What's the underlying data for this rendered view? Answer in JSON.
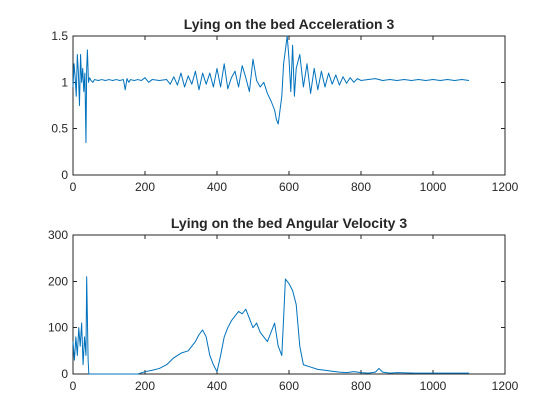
{
  "figure": {
    "background": "#ffffff",
    "axis_color": "#262626",
    "line_color": "#0072bd"
  },
  "chart_data": [
    {
      "type": "line",
      "title": "Lying on the bed Acceleration 3",
      "xlabel": "",
      "ylabel": "",
      "xlim": [
        0,
        1200
      ],
      "ylim": [
        0,
        1.5
      ],
      "xticks": [
        0,
        200,
        400,
        600,
        800,
        1000,
        1200
      ],
      "yticks": [
        0,
        0.5,
        1,
        1.5
      ],
      "xtick_labels": [
        "0",
        "200",
        "400",
        "600",
        "800",
        "1000",
        "1200"
      ],
      "ytick_labels": [
        "0",
        "0.5",
        "1",
        "1.5"
      ],
      "grid": false,
      "series": [
        {
          "x": [
            0,
            3,
            6,
            9,
            12,
            15,
            18,
            21,
            24,
            27,
            30,
            33,
            36,
            38,
            40,
            43,
            46,
            50,
            55,
            60,
            70,
            80,
            90,
            100,
            110,
            120,
            130,
            140,
            145,
            150,
            155,
            160,
            170,
            180,
            190,
            200,
            210,
            220,
            240,
            260,
            270,
            280,
            290,
            300,
            310,
            320,
            330,
            340,
            350,
            360,
            370,
            380,
            390,
            400,
            410,
            420,
            430,
            440,
            450,
            460,
            470,
            480,
            490,
            500,
            510,
            520,
            530,
            540,
            550,
            560,
            565,
            570,
            575,
            580,
            585,
            590,
            595,
            600,
            605,
            610,
            615,
            620,
            630,
            640,
            650,
            660,
            670,
            680,
            690,
            700,
            710,
            720,
            730,
            740,
            750,
            760,
            770,
            780,
            790,
            800,
            820,
            840,
            860,
            880,
            900,
            920,
            940,
            960,
            980,
            1000,
            1020,
            1040,
            1060,
            1080,
            1100
          ],
          "y": [
            0.95,
            1.2,
            1.05,
            0.85,
            1.3,
            1.1,
            0.75,
            1.3,
            1.0,
            1.15,
            0.9,
            1.1,
            0.35,
            1.15,
            1.35,
            1.0,
            1.05,
            1.02,
            1.0,
            1.03,
            1.02,
            1.03,
            1.02,
            1.03,
            1.02,
            1.03,
            1.02,
            1.03,
            0.92,
            1.04,
            1.0,
            1.03,
            1.02,
            1.03,
            1.02,
            1.05,
            1.0,
            1.03,
            1.02,
            1.03,
            0.98,
            1.06,
            0.97,
            1.1,
            0.95,
            1.07,
            0.98,
            1.12,
            0.92,
            1.1,
            0.98,
            1.1,
            0.95,
            1.15,
            0.95,
            1.2,
            0.93,
            1.05,
            1.12,
            0.95,
            1.18,
            1.05,
            0.9,
            1.25,
            1.02,
            0.95,
            1.0,
            0.88,
            0.8,
            0.7,
            0.6,
            0.55,
            0.7,
            0.85,
            1.2,
            1.35,
            1.5,
            1.25,
            0.9,
            1.4,
            0.85,
            1.15,
            1.3,
            0.95,
            1.2,
            0.88,
            1.15,
            0.92,
            1.12,
            0.95,
            1.1,
            0.98,
            1.08,
            0.97,
            1.06,
            0.99,
            1.05,
            1.0,
            1.04,
            1.02,
            1.03,
            1.04,
            1.02,
            1.03,
            1.02,
            1.03,
            1.02,
            1.03,
            1.02,
            1.03,
            1.02,
            1.03,
            1.02,
            1.03,
            1.02
          ]
        }
      ]
    },
    {
      "type": "line",
      "title": "Lying on the bed Angular Velocity 3",
      "xlabel": "",
      "ylabel": "",
      "xlim": [
        0,
        1200
      ],
      "ylim": [
        0,
        300
      ],
      "xticks": [
        0,
        200,
        400,
        600,
        800,
        1000,
        1200
      ],
      "yticks": [
        0,
        100,
        200,
        300
      ],
      "xtick_labels": [
        "0",
        "200",
        "400",
        "600",
        "800",
        "1000",
        "1200"
      ],
      "ytick_labels": [
        "0",
        "100",
        "200",
        "300"
      ],
      "grid": false,
      "series": [
        {
          "x": [
            0,
            4,
            8,
            12,
            16,
            20,
            24,
            28,
            32,
            36,
            38,
            40,
            42,
            44,
            48,
            60,
            100,
            150,
            170,
            180,
            200,
            220,
            240,
            260,
            280,
            300,
            320,
            340,
            350,
            360,
            370,
            380,
            390,
            400,
            410,
            420,
            430,
            440,
            450,
            460,
            470,
            480,
            490,
            500,
            510,
            520,
            530,
            540,
            550,
            560,
            570,
            580,
            585,
            590,
            595,
            600,
            610,
            620,
            630,
            640,
            660,
            680,
            700,
            720,
            740,
            760,
            780,
            800,
            820,
            840,
            850,
            860,
            880,
            900,
            950,
            1000,
            1050,
            1100
          ],
          "y": [
            70,
            30,
            80,
            40,
            100,
            60,
            110,
            20,
            80,
            40,
            210,
            120,
            30,
            0,
            0,
            0,
            0,
            0,
            0,
            0,
            5,
            8,
            12,
            20,
            35,
            45,
            50,
            70,
            85,
            95,
            80,
            40,
            20,
            5,
            40,
            80,
            100,
            115,
            125,
            135,
            130,
            140,
            120,
            100,
            110,
            90,
            80,
            70,
            90,
            110,
            60,
            40,
            120,
            205,
            200,
            195,
            180,
            150,
            60,
            20,
            15,
            10,
            8,
            6,
            4,
            3,
            5,
            3,
            2,
            4,
            12,
            4,
            2,
            3,
            2,
            2,
            2,
            2
          ]
        }
      ]
    }
  ]
}
